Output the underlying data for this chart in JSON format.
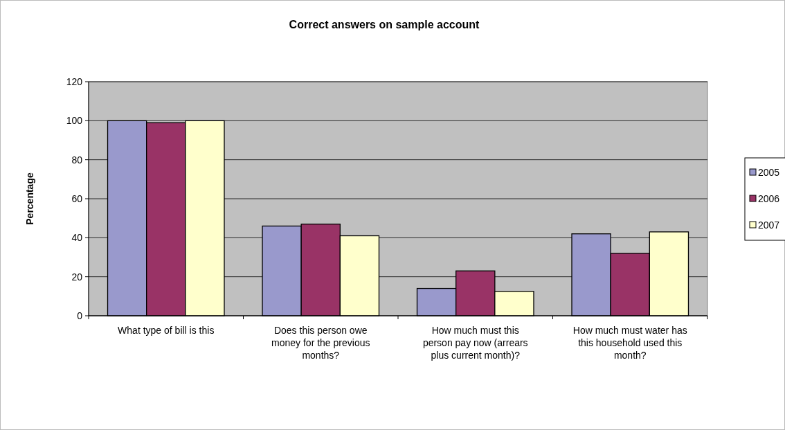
{
  "chart_data": {
    "type": "bar",
    "title": "Correct answers on sample account",
    "ylabel": "Percentage",
    "categories": [
      "What type of bill is this",
      "Does this person owe money for the previous months?",
      "How much must this person pay now (arrears plus current month)?",
      "How much must water has this household used this month?"
    ],
    "series": [
      {
        "name": "2005",
        "color": "#9999cc",
        "values": [
          100,
          46,
          14,
          42
        ]
      },
      {
        "name": "2006",
        "color": "#993366",
        "values": [
          99,
          47,
          23,
          32
        ]
      },
      {
        "name": "2007",
        "color": "#ffffcc",
        "values": [
          100,
          41,
          12.5,
          43
        ]
      }
    ],
    "ylim": [
      0,
      120
    ],
    "yticks": [
      0,
      20,
      40,
      60,
      80,
      100,
      120
    ],
    "grid": "y",
    "legend": "right"
  }
}
